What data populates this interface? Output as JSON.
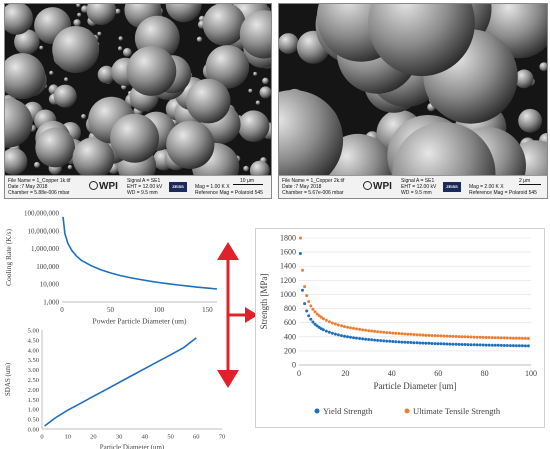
{
  "sem_images": [
    {
      "file_name": "File Name = 1_Copper 1k.tif",
      "date": "Date :7 May 2018",
      "chamber": "Chamber = 5.88e-006 mbar",
      "signal": "Signal A = SE1",
      "eht": "EHT = 12.00 kV",
      "wd": "WD = 9.5 mm",
      "mag": "Mag = 1.00 K X",
      "ref_mag": "Reference Mag = Polaroid 545",
      "scale": "10 μm",
      "logo": "WPI",
      "brand": "ZEISS"
    },
    {
      "file_name": "File Name = 1_Copper 2k.tif",
      "date": "Date :7 May 2018",
      "chamber": "Chamber = 5.67e-006 mbar",
      "signal": "Signal A = SE1",
      "eht": "EHT = 12.00 kV",
      "wd": "WD = 9.5 mm",
      "mag": "Mag = 2.00 K X",
      "ref_mag": "Reference Mag = Polaroid 545",
      "scale": "2 μm",
      "logo": "WPI",
      "brand": "ZEISS"
    }
  ],
  "colors": {
    "blue": "#1f6fbf",
    "orange": "#ed7d31",
    "red": "#e0202a",
    "axis": "#bfbfbf",
    "text": "#404040"
  },
  "chart_data": [
    {
      "type": "line",
      "ylabel": "Cooling Rate (K/s)",
      "xlabel": "Powder Particle Diameter (um)",
      "yscale": "log",
      "xlim": [
        0,
        160
      ],
      "ylim": [
        1000,
        100000000
      ],
      "x_ticks": [
        "0",
        "50",
        "100",
        "150"
      ],
      "y_ticks": [
        "1,000",
        "10,000",
        "100,000",
        "1,000,000",
        "10,000,000",
        "100,000,000"
      ],
      "series": [
        {
          "x": [
            1,
            3,
            6,
            10,
            15,
            20,
            30,
            40,
            50,
            60,
            70,
            80,
            90,
            100,
            110,
            120,
            130,
            140,
            150,
            160
          ],
          "values": [
            60000000,
            7000000,
            2000000,
            800000,
            380000,
            220000,
            110000,
            65000,
            43000,
            31000,
            23500,
            18500,
            15000,
            12500,
            10500,
            9000,
            7800,
            6800,
            6000,
            5400
          ]
        }
      ]
    },
    {
      "type": "line",
      "ylabel": "SDAS (um)",
      "xlabel": "Particle Diameter (um)",
      "xlim": [
        0,
        70
      ],
      "ylim": [
        0,
        5
      ],
      "x_ticks": [
        "0",
        "10",
        "20",
        "30",
        "40",
        "50",
        "60",
        "70"
      ],
      "y_ticks": [
        "0.00",
        "0.50",
        "1.00",
        "1.50",
        "2.00",
        "2.50",
        "3.00",
        "3.50",
        "4.00",
        "4.50",
        "5.00"
      ],
      "series": [
        {
          "x": [
            1,
            5,
            10,
            15,
            20,
            25,
            30,
            35,
            40,
            45,
            50,
            55,
            60
          ],
          "values": [
            0.15,
            0.55,
            0.95,
            1.3,
            1.65,
            2.0,
            2.35,
            2.7,
            3.05,
            3.4,
            3.75,
            4.1,
            4.6
          ]
        }
      ]
    },
    {
      "type": "scatter",
      "ylabel": "Strength [MPa]",
      "xlabel": "Particle Diameter [um]",
      "xlim": [
        0,
        100
      ],
      "ylim": [
        0,
        1800
      ],
      "x_ticks": [
        "0",
        "20",
        "40",
        "60",
        "80",
        "100"
      ],
      "y_ticks": [
        "0",
        "200",
        "400",
        "600",
        "800",
        "1000",
        "1200",
        "1400",
        "1600",
        "1800"
      ],
      "legend_position": "bottom",
      "series": [
        {
          "name": "Yield Strength",
          "color": "#1f6fbf",
          "kind": "yield"
        },
        {
          "name": "Ultimate Tensile Strength",
          "color": "#ed7d31",
          "kind": "uts"
        }
      ]
    }
  ]
}
